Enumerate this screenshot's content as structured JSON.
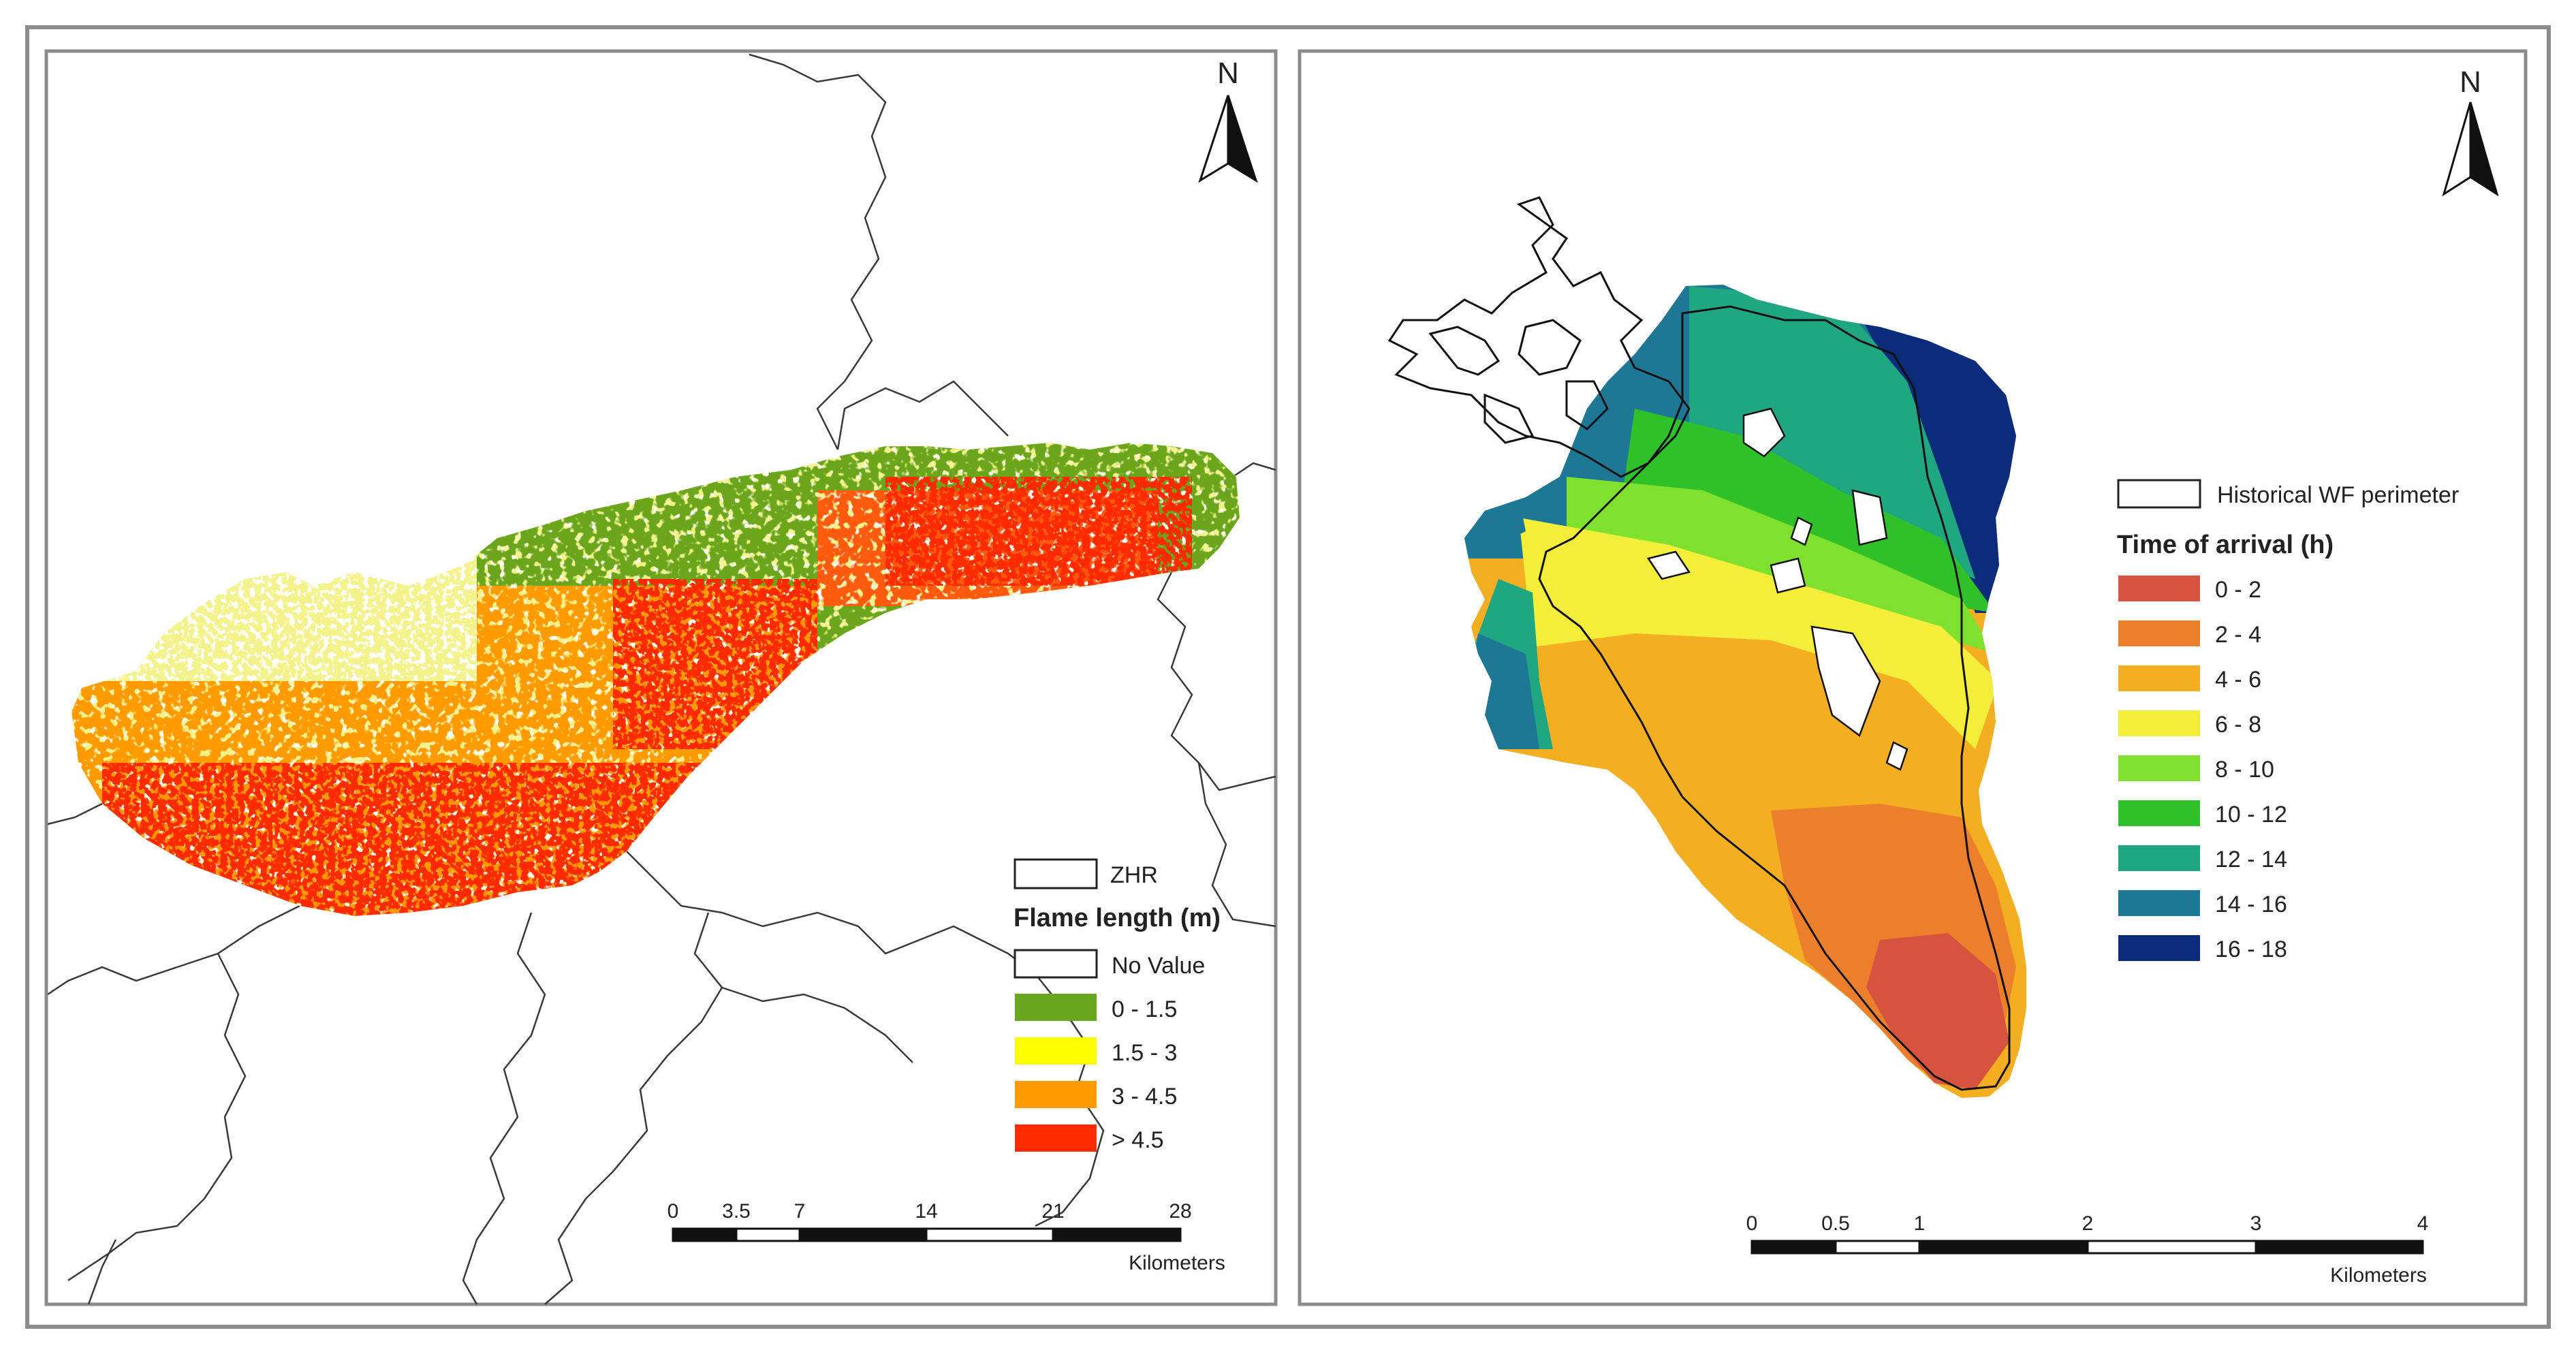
{
  "left_map": {
    "north_label": "N",
    "legend": {
      "boundary_label": "ZHR",
      "title": "Flame length (m)",
      "items": [
        {
          "label": "No Value",
          "color": "#ffffff"
        },
        {
          "label": "0 - 1.5",
          "color": "#6aa51e"
        },
        {
          "label": "1.5 - 3",
          "color": "#ffff00"
        },
        {
          "label": "3 - 4.5",
          "color": "#ff9a00"
        },
        {
          "label": "> 4.5",
          "color": "#ff2a00"
        }
      ]
    },
    "scale": {
      "ticks": [
        "0",
        "3.5",
        "7",
        "14",
        "21",
        "28"
      ],
      "unit": "Kilometers"
    }
  },
  "right_map": {
    "north_label": "N",
    "legend": {
      "boundary_label": "Historical WF perimeter",
      "title": "Time of arrival (h)",
      "items": [
        {
          "label": "0 - 2",
          "color": "#d6533f"
        },
        {
          "label": "2 - 4",
          "color": "#ec7f2c"
        },
        {
          "label": "4 - 6",
          "color": "#f4ae22"
        },
        {
          "label": "6 - 8",
          "color": "#f3ee39"
        },
        {
          "label": "8 - 10",
          "color": "#7fe12d"
        },
        {
          "label": "10 - 12",
          "color": "#2fc02a"
        },
        {
          "label": "12 - 14",
          "color": "#1fa782"
        },
        {
          "label": "14 - 16",
          "color": "#1c7894"
        },
        {
          "label": "16 - 18",
          "color": "#0b2b7b"
        }
      ]
    },
    "scale": {
      "ticks": [
        "0",
        "0.5",
        "1",
        "2",
        "3",
        "4"
      ],
      "unit": "Kilometers"
    }
  }
}
